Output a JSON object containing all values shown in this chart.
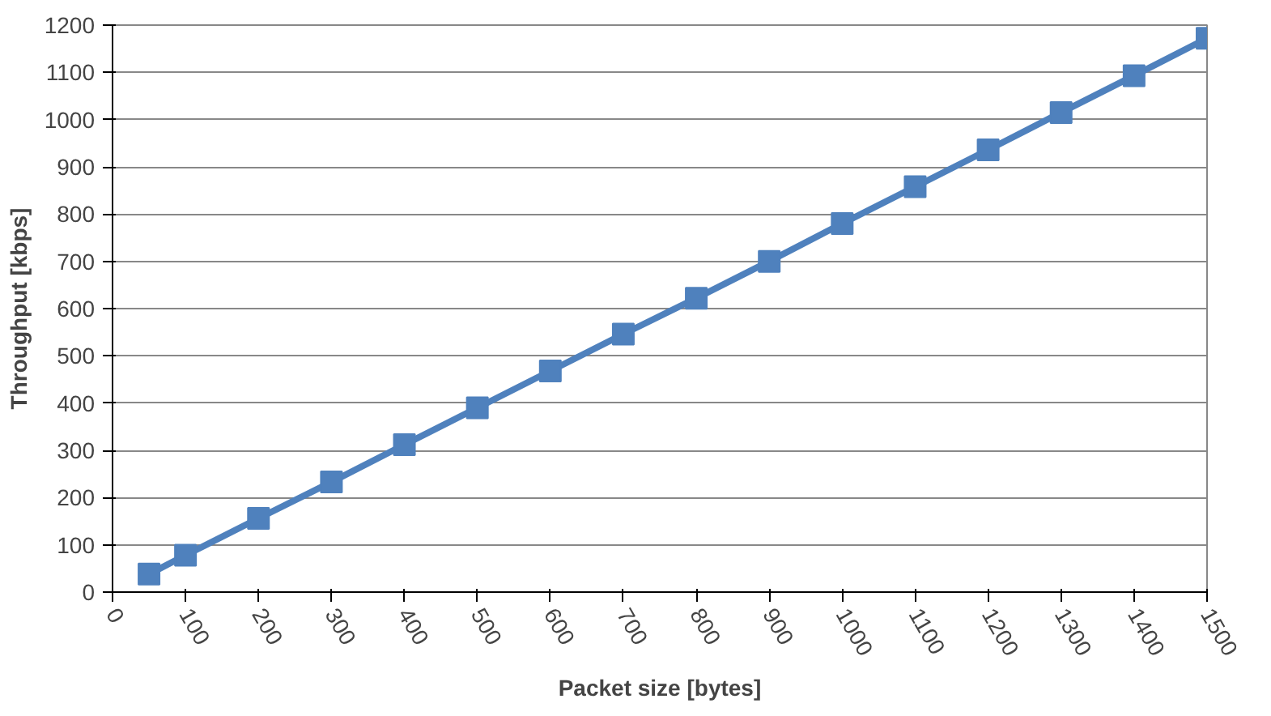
{
  "chart_data": {
    "type": "line",
    "xlabel": "Packet size [bytes]",
    "ylabel": "Throughput [kbps]",
    "x": [
      50,
      100,
      200,
      300,
      400,
      500,
      600,
      700,
      800,
      900,
      1000,
      1100,
      1200,
      1300,
      1400,
      1500
    ],
    "series": [
      {
        "color": "#4f81bd",
        "values": [
          38,
          78,
          156,
          233,
          312,
          390,
          468,
          546,
          622,
          700,
          780,
          858,
          936,
          1015,
          1093,
          1172
        ]
      }
    ],
    "xlim": [
      0,
      1500
    ],
    "xticks": [
      0,
      100,
      200,
      300,
      400,
      500,
      600,
      700,
      800,
      900,
      1000,
      1100,
      1200,
      1300,
      1400,
      1500
    ],
    "ylim": [
      0,
      1200
    ],
    "yticks": [
      0,
      100,
      200,
      300,
      400,
      500,
      600,
      700,
      800,
      900,
      1000,
      1100,
      1200
    ],
    "grid": "y",
    "marker": "square",
    "line_style": "solid"
  }
}
